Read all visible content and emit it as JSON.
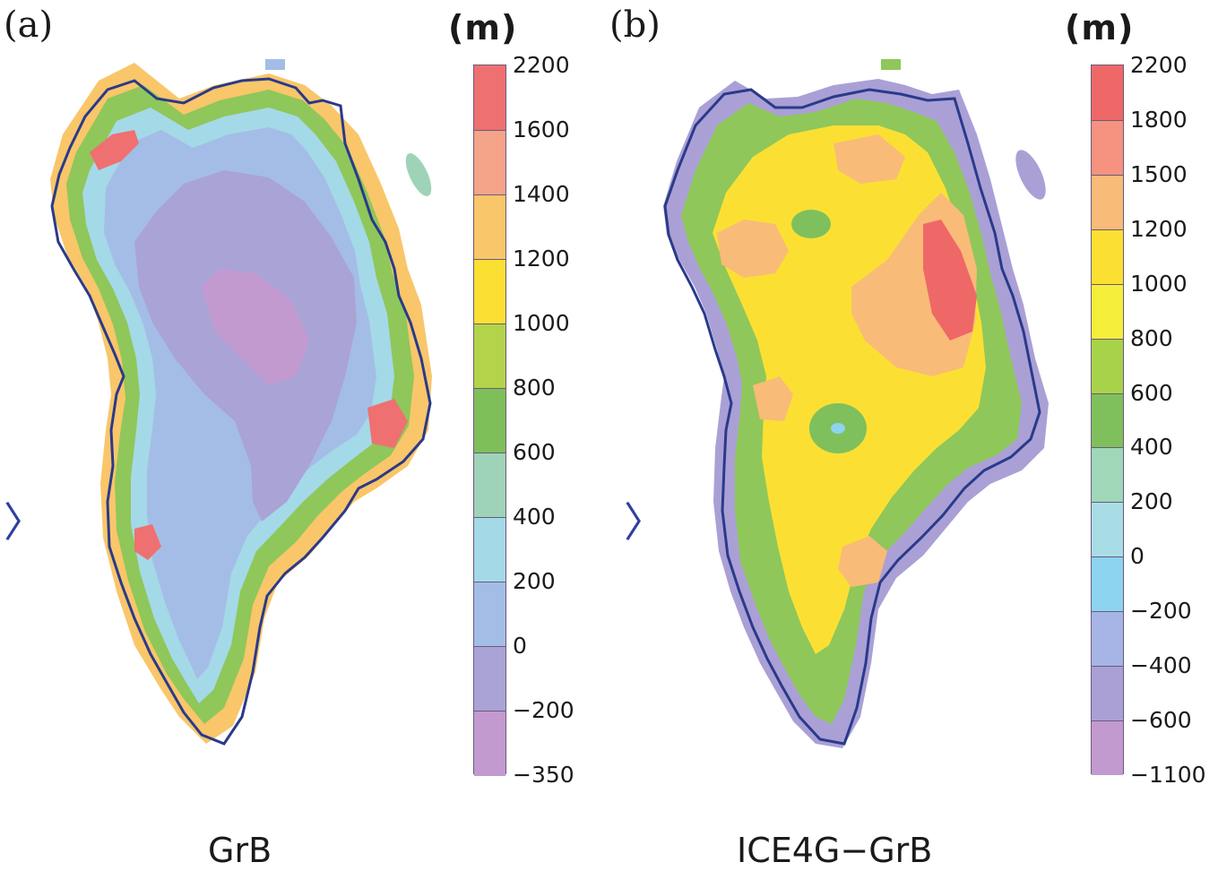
{
  "panels": [
    {
      "id": "a",
      "label": "(a)",
      "unit": "(m)",
      "caption": "GrB",
      "colorbar": {
        "labels": [
          "2200",
          "1600",
          "1400",
          "1200",
          "1000",
          "800",
          "600",
          "400",
          "200",
          "0",
          "−200",
          "−350"
        ],
        "colors": [
          "#ef7070",
          "#f5a48a",
          "#f9c66a",
          "#fbe033",
          "#b3d34a",
          "#7fbf5a",
          "#9fd3b8",
          "#a4d9e8",
          "#a4bde6",
          "#aaa3d6",
          "#c39ad0"
        ]
      }
    },
    {
      "id": "b",
      "label": "(b)",
      "unit": "(m)",
      "caption": "ICE4G−GrB",
      "colorbar": {
        "labels": [
          "2200",
          "1800",
          "1500",
          "1200",
          "1000",
          "800",
          "600",
          "400",
          "200",
          "0",
          "−200",
          "−400",
          "−600",
          "−1100"
        ],
        "colors": [
          "#ef6868",
          "#f59280",
          "#f9bb78",
          "#fbe033",
          "#f5ee3a",
          "#a8d24a",
          "#7fc05c",
          "#9fd7b8",
          "#a9dde6",
          "#8cd4f0",
          "#a6b5e5",
          "#aaa0d6",
          "#c39ad0"
        ]
      }
    }
  ]
}
